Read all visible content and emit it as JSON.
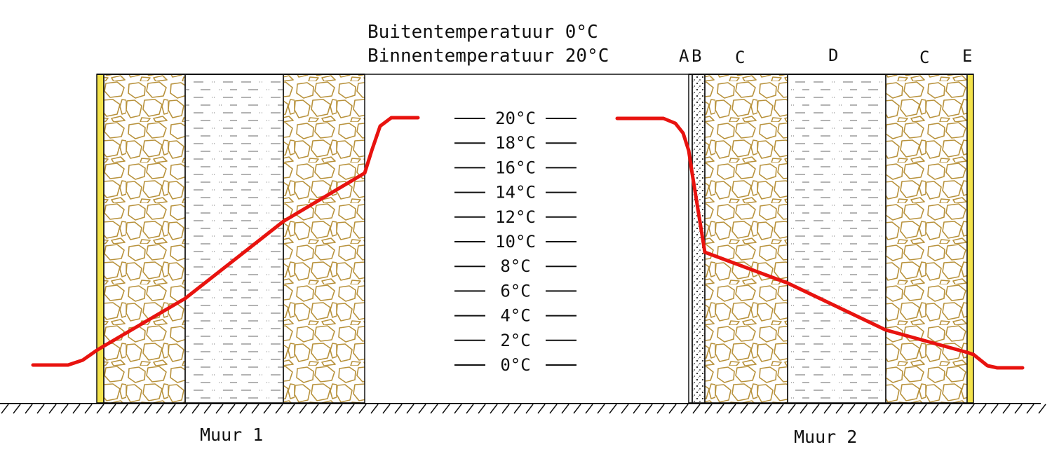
{
  "conditions": {
    "outside": "Buitentemperatuur 0°C",
    "inside": "Binnentemperatuur 20°C"
  },
  "scale": {
    "ticks": [
      "20°C",
      "18°C",
      "16°C",
      "14°C",
      "12°C",
      "10°C",
      "8°C",
      "6°C",
      "4°C",
      "2°C",
      "0°C"
    ]
  },
  "walls": {
    "wall1": {
      "label": "Muur 1"
    },
    "wall2": {
      "label": "Muur 2",
      "layers": [
        "A",
        "B",
        "C",
        "D",
        "C",
        "E"
      ]
    }
  },
  "colors": {
    "temperature_line": "#e8130f",
    "plaster": "#f3e24a",
    "masonry_stroke": "#b8923c",
    "outline": "#111111"
  },
  "legend": {
    "masonry": "masonry-hatch",
    "insulation": "dashed-hatch",
    "vapour_layer": "dotted-hatch"
  }
}
